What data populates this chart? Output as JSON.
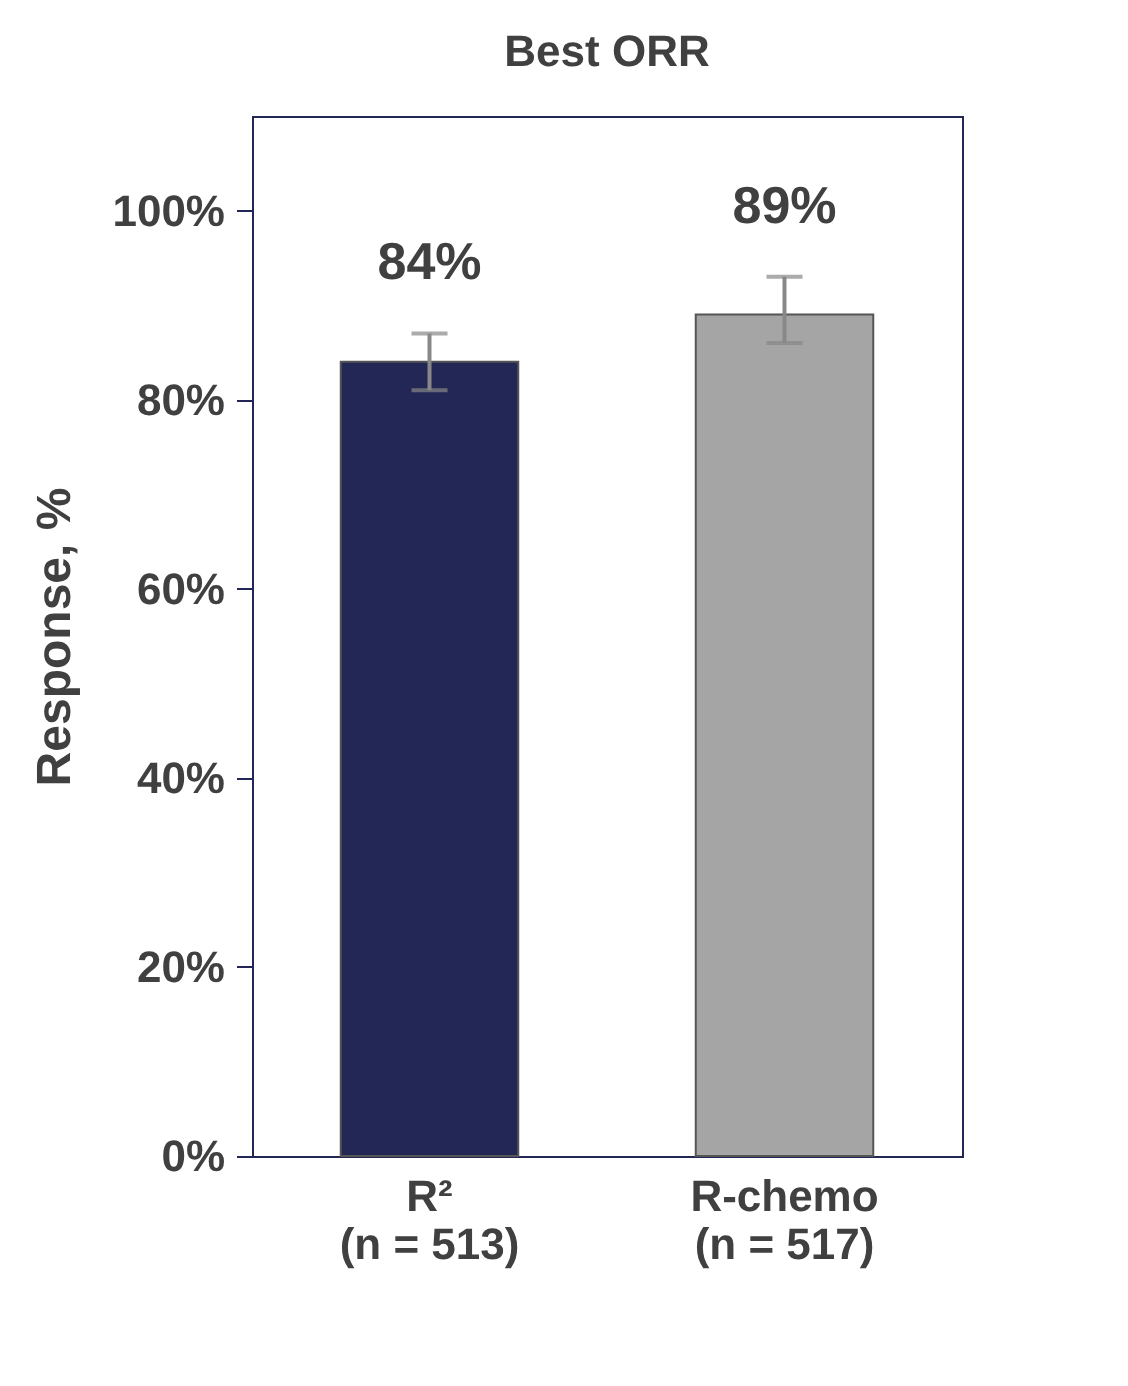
{
  "chart_data": {
    "type": "bar",
    "title": "Best ORR",
    "ylabel": "Response, %",
    "categories": [
      "R²\n(n = 513)",
      "R-chemo\n(n = 517)"
    ],
    "values": [
      84,
      89
    ],
    "colors": [
      "#222755",
      "#a5a5a5"
    ],
    "errors": [
      [
        81,
        87
      ],
      [
        86,
        93
      ]
    ],
    "value_labels": [
      "84%",
      "89%"
    ],
    "ylim": [
      0,
      110
    ],
    "yticks": [
      {
        "value": 0,
        "label": "0%"
      },
      {
        "value": 20,
        "label": "20%"
      },
      {
        "value": 40,
        "label": "40%"
      },
      {
        "value": 60,
        "label": "60%"
      },
      {
        "value": 80,
        "label": "80%"
      },
      {
        "value": 100,
        "label": "100%"
      }
    ],
    "grid": false,
    "legend": false
  }
}
